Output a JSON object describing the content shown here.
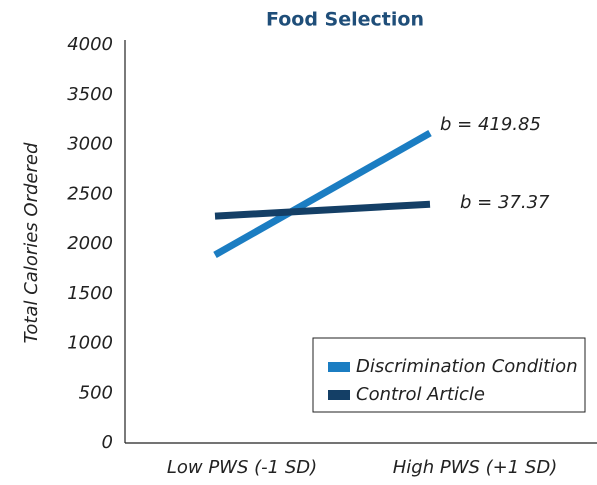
{
  "chart_data": {
    "type": "line",
    "title": "Food Selection",
    "y_label": "Total Calories Ordered",
    "categories": [
      "Low PWS (-1 SD)",
      "High PWS (+1 SD)"
    ],
    "series": [
      {
        "name": "Discrimination Condition",
        "color": "#1b7dc2",
        "values": [
          1890,
          3115
        ]
      },
      {
        "name": "Control Article",
        "color": "#143f66",
        "values": [
          2280,
          2400
        ]
      }
    ],
    "annotations": [
      "b = 419.85",
      "b = 37.37"
    ],
    "ylim": [
      0,
      4000
    ],
    "yticks": [
      0,
      500,
      1000,
      1500,
      2000,
      2500,
      3000,
      3500,
      4000
    ],
    "grid": false,
    "legend": "lower right"
  }
}
